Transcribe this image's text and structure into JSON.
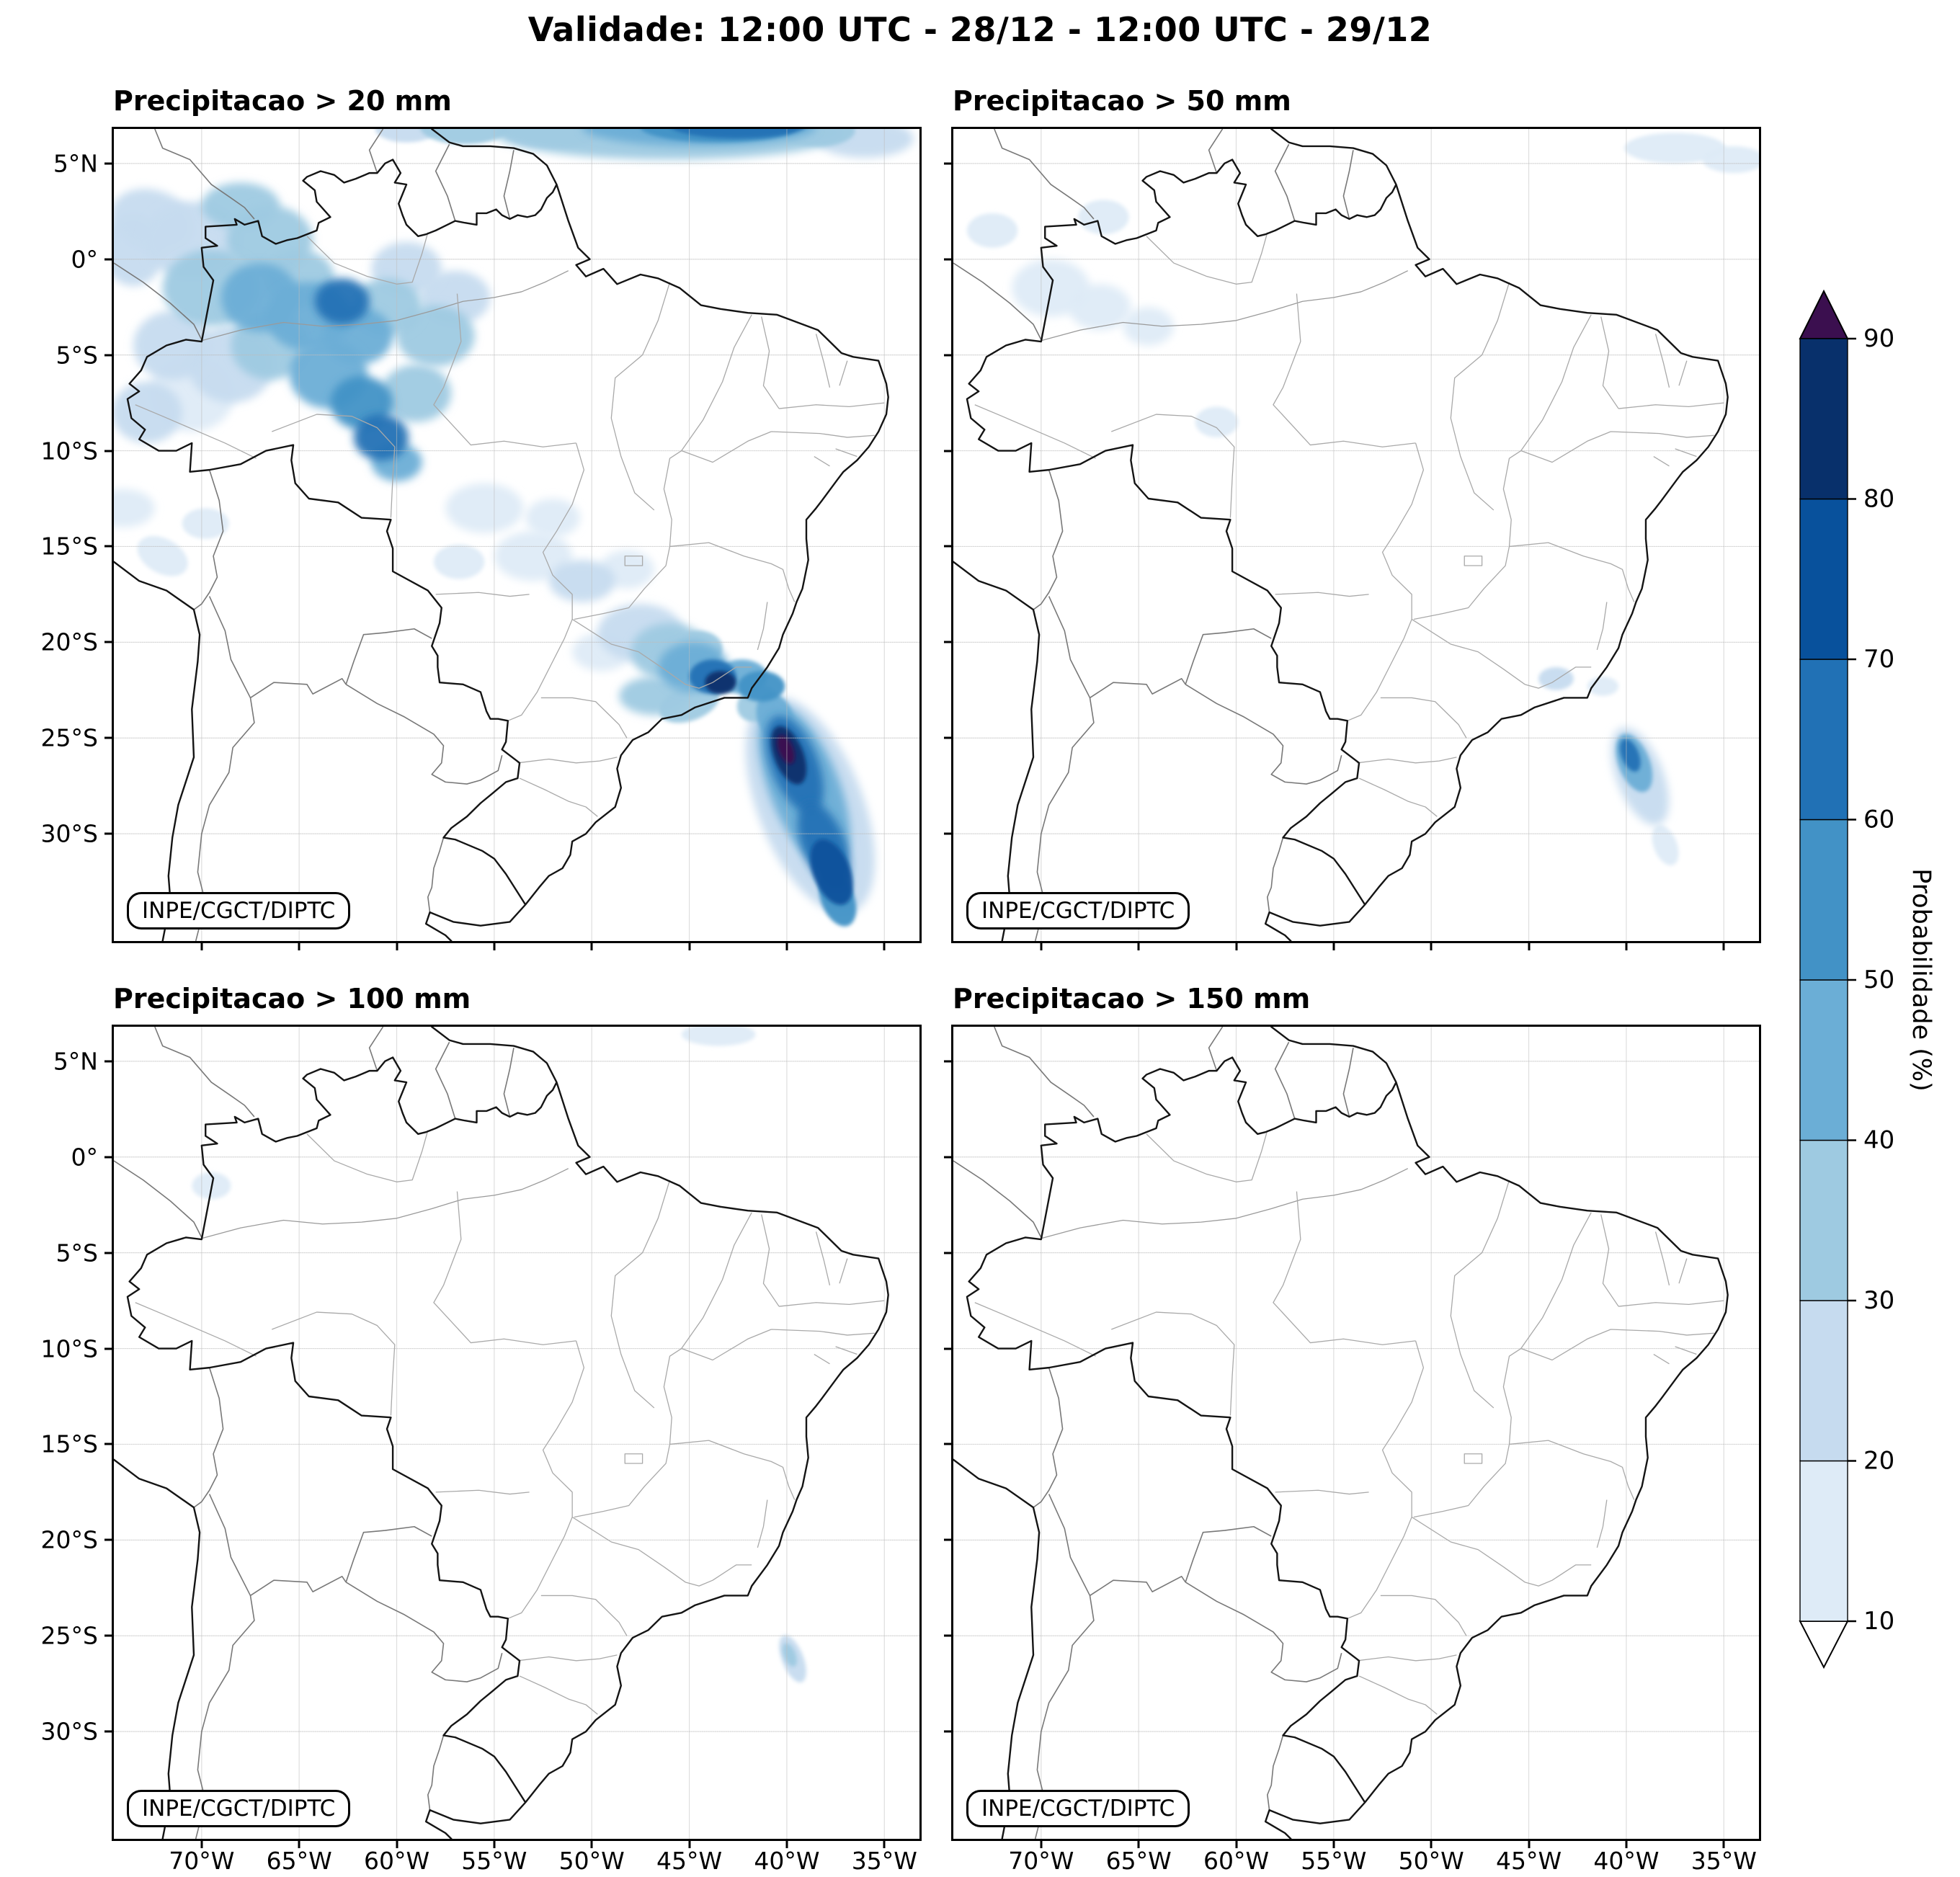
{
  "title": "Validade: 12:00 UTC - 28/12 - 12:00 UTC - 29/12",
  "credit": "INPE/CGCT/DIPTC",
  "panels": [
    {
      "title": "Precipitacao > 20 mm",
      "show_y": true,
      "show_x": false
    },
    {
      "title": "Precipitacao > 50 mm",
      "show_y": false,
      "show_x": false
    },
    {
      "title": "Precipitacao > 100 mm",
      "show_y": true,
      "show_x": true
    },
    {
      "title": "Precipitacao > 150 mm",
      "show_y": false,
      "show_x": true
    }
  ],
  "axes": {
    "extent": {
      "lon_min": -74.5,
      "lon_max": -33.2,
      "lat_min": -35.6,
      "lat_max": 6.8
    },
    "lon_ticks": [
      {
        "value": -70,
        "label": "70°W"
      },
      {
        "value": -65,
        "label": "65°W"
      },
      {
        "value": -60,
        "label": "60°W"
      },
      {
        "value": -55,
        "label": "55°W"
      },
      {
        "value": -50,
        "label": "50°W"
      },
      {
        "value": -45,
        "label": "45°W"
      },
      {
        "value": -40,
        "label": "40°W"
      },
      {
        "value": -35,
        "label": "35°W"
      }
    ],
    "lat_ticks": [
      {
        "value": 5,
        "label": "5°N"
      },
      {
        "value": 0,
        "label": "0°"
      },
      {
        "value": -5,
        "label": "5°S"
      },
      {
        "value": -10,
        "label": "10°S"
      },
      {
        "value": -15,
        "label": "15°S"
      },
      {
        "value": -20,
        "label": "20°S"
      },
      {
        "value": -25,
        "label": "25°S"
      },
      {
        "value": -30,
        "label": "30°S"
      }
    ]
  },
  "colorbar": {
    "label": "Probabilidade (%)",
    "ticks": [
      10,
      20,
      30,
      40,
      50,
      60,
      70,
      80,
      90
    ],
    "segment_colors": [
      "#deebf7",
      "#c6dbef",
      "#9ecae1",
      "#6baed6",
      "#4292c6",
      "#2171b5",
      "#08519c",
      "#08306b"
    ],
    "over_color": "#3b0f4f",
    "under_color": "#ffffff"
  },
  "chart_data": {
    "type": "heatmap",
    "title": "Validade: 12:00 UTC - 28/12 - 12:00 UTC - 29/12",
    "variable": "Probabilidade (%)",
    "levels": [
      10,
      20,
      30,
      40,
      50,
      60,
      70,
      80,
      90
    ],
    "region_format": [
      "lon_deg",
      "lat_deg",
      "rx_deg",
      "ry_deg",
      "rotation_deg",
      "probability_pct"
    ],
    "panels": [
      {
        "threshold_mm": 20,
        "title": "Precipitacao > 20 mm",
        "regions": [
          [
            -46,
            6.6,
            9,
            1.4,
            0,
            30
          ],
          [
            -44.5,
            6.9,
            6,
            1.0,
            0,
            40
          ],
          [
            -43.5,
            6.9,
            4,
            0.8,
            0,
            50
          ],
          [
            -42.5,
            7.0,
            3.5,
            0.7,
            0,
            60
          ],
          [
            -52,
            6.6,
            2.5,
            0.8,
            0,
            20
          ],
          [
            -56.5,
            6.9,
            2.3,
            0.9,
            0,
            30
          ],
          [
            -59.5,
            6.8,
            1.6,
            0.7,
            0,
            20
          ],
          [
            -38.5,
            6.7,
            2.0,
            0.8,
            0,
            30
          ],
          [
            -36,
            6.3,
            2.5,
            1.0,
            0,
            20
          ],
          [
            -73.5,
            0.5,
            1.6,
            1.9,
            0,
            20
          ],
          [
            -72.5,
            2.0,
            2.2,
            1.6,
            20,
            20
          ],
          [
            -70.5,
            1.0,
            2.5,
            2.0,
            0,
            20
          ],
          [
            -68.0,
            2.8,
            2.0,
            1.2,
            0,
            30
          ],
          [
            -66.5,
            1.0,
            2.2,
            1.8,
            0,
            30
          ],
          [
            -69.5,
            -1.5,
            2.5,
            2.0,
            0,
            30
          ],
          [
            -67.0,
            -2.0,
            2.0,
            1.8,
            0,
            40
          ],
          [
            -65.0,
            -1.0,
            1.8,
            1.5,
            0,
            30
          ],
          [
            -64.5,
            -3.0,
            2.2,
            1.8,
            0,
            40
          ],
          [
            -62.8,
            -2.2,
            1.4,
            1.2,
            0,
            60
          ],
          [
            -62.0,
            -4.0,
            1.8,
            1.5,
            0,
            40
          ],
          [
            -66.5,
            -4.5,
            2.0,
            1.8,
            0,
            30
          ],
          [
            -68.5,
            -5.5,
            2.2,
            2.0,
            0,
            20
          ],
          [
            -63.5,
            -6.0,
            2.0,
            1.8,
            0,
            40
          ],
          [
            -61.8,
            -7.5,
            1.6,
            1.4,
            0,
            50
          ],
          [
            -60.8,
            -9.3,
            1.4,
            1.2,
            0,
            60
          ],
          [
            -60.0,
            -10.6,
            1.3,
            1.0,
            0,
            40
          ],
          [
            -59.0,
            -7.0,
            1.8,
            1.5,
            0,
            30
          ],
          [
            -58.0,
            -4.0,
            2.0,
            1.6,
            0,
            30
          ],
          [
            -57.0,
            -2.0,
            1.8,
            1.4,
            0,
            20
          ],
          [
            -60.5,
            -2.5,
            1.8,
            1.5,
            0,
            30
          ],
          [
            -59.5,
            -0.5,
            1.8,
            1.4,
            0,
            20
          ],
          [
            -71.5,
            -4.5,
            2.0,
            1.8,
            0,
            20
          ],
          [
            -72.8,
            -8.0,
            1.8,
            1.6,
            0,
            20
          ],
          [
            -70.5,
            -7.0,
            2.2,
            2.0,
            0,
            15
          ],
          [
            -74.0,
            -13.0,
            1.6,
            1.0,
            0,
            15
          ],
          [
            -72.0,
            -15.5,
            1.4,
            0.9,
            30,
            15
          ],
          [
            -69.8,
            -13.8,
            1.2,
            0.8,
            0,
            15
          ],
          [
            -55.5,
            -13.0,
            2.0,
            1.3,
            0,
            15
          ],
          [
            -53.0,
            -15.5,
            2.0,
            1.3,
            0,
            15
          ],
          [
            -50.5,
            -16.8,
            1.7,
            1.1,
            0,
            20
          ],
          [
            -48.2,
            -16.2,
            1.4,
            1.0,
            0,
            15
          ],
          [
            -56.8,
            -15.8,
            1.3,
            0.9,
            0,
            15
          ],
          [
            -52.0,
            -13.5,
            1.4,
            1.0,
            0,
            15
          ],
          [
            -47.5,
            -19.5,
            2.2,
            1.5,
            0,
            20
          ],
          [
            -46.0,
            -20.5,
            2.0,
            1.5,
            0,
            30
          ],
          [
            -44.8,
            -21.3,
            1.8,
            1.3,
            0,
            40
          ],
          [
            -43.8,
            -21.8,
            1.2,
            0.9,
            0,
            60
          ],
          [
            -43.4,
            -22.1,
            0.8,
            0.6,
            0,
            80
          ],
          [
            -42.3,
            -21.8,
            1.3,
            0.9,
            0,
            40
          ],
          [
            -41.3,
            -22.3,
            1.2,
            0.8,
            0,
            50
          ],
          [
            -46.8,
            -22.8,
            1.8,
            1.0,
            0,
            30
          ],
          [
            -45.0,
            -23.2,
            1.6,
            0.9,
            -20,
            30
          ],
          [
            -49.5,
            -20.5,
            1.5,
            1.0,
            0,
            15
          ],
          [
            -44.5,
            -20.3,
            1.2,
            0.9,
            0,
            30
          ],
          [
            -38.8,
            -28.5,
            2.7,
            6.0,
            -21,
            20
          ],
          [
            -39.1,
            -27.6,
            1.8,
            4.6,
            -21,
            40
          ],
          [
            -39.6,
            -26.4,
            1.2,
            2.7,
            -21,
            60
          ],
          [
            -39.9,
            -25.9,
            0.75,
            1.6,
            -21,
            80
          ],
          [
            -40.05,
            -25.6,
            0.38,
            0.8,
            -21,
            95
          ],
          [
            -38.1,
            -30.6,
            1.1,
            2.4,
            -21,
            60
          ],
          [
            -37.7,
            -32.0,
            0.95,
            1.8,
            -21,
            70
          ],
          [
            -37.4,
            -33.4,
            0.85,
            1.5,
            -21,
            50
          ],
          [
            -40.6,
            -23.9,
            0.9,
            1.3,
            -21,
            40
          ],
          [
            -41.5,
            -23.2,
            1.1,
            0.9,
            -30,
            30
          ]
        ]
      },
      {
        "threshold_mm": 50,
        "title": "Precipitacao > 50 mm",
        "regions": [
          [
            -69.5,
            -1.5,
            2.0,
            1.5,
            0,
            15
          ],
          [
            -67.0,
            -2.5,
            1.6,
            1.2,
            0,
            15
          ],
          [
            -64.5,
            -3.5,
            1.3,
            1.0,
            0,
            15
          ],
          [
            -61.0,
            -8.5,
            1.1,
            0.8,
            0,
            15
          ],
          [
            -66.8,
            2.2,
            1.3,
            0.9,
            0,
            15
          ],
          [
            -72.5,
            1.5,
            1.3,
            0.9,
            0,
            15
          ],
          [
            -37.5,
            5.8,
            2.6,
            0.8,
            0,
            15
          ],
          [
            -34.5,
            5.2,
            1.6,
            0.7,
            0,
            15
          ],
          [
            -43.6,
            -21.9,
            0.9,
            0.6,
            0,
            20
          ],
          [
            -41.2,
            -22.3,
            0.8,
            0.5,
            0,
            15
          ],
          [
            -39.3,
            -27.0,
            1.2,
            2.7,
            -21,
            25
          ],
          [
            -39.6,
            -26.3,
            0.8,
            1.6,
            -21,
            40
          ],
          [
            -39.8,
            -25.9,
            0.45,
            0.9,
            -21,
            60
          ],
          [
            -38.0,
            -30.6,
            0.6,
            1.1,
            -21,
            15
          ]
        ]
      },
      {
        "threshold_mm": 100,
        "title": "Precipitacao > 100 mm",
        "regions": [
          [
            -43.5,
            6.4,
            1.9,
            0.6,
            0,
            15
          ],
          [
            -39.7,
            -26.2,
            0.55,
            1.3,
            -21,
            20
          ],
          [
            -39.85,
            -26.0,
            0.3,
            0.65,
            -21,
            30
          ],
          [
            -69.5,
            -1.5,
            1.0,
            0.7,
            0,
            12
          ]
        ]
      },
      {
        "threshold_mm": 150,
        "title": "Precipitacao > 150 mm",
        "regions": []
      }
    ]
  }
}
